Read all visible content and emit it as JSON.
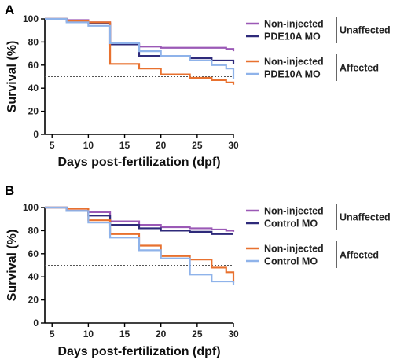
{
  "chart_data": [
    {
      "type": "line",
      "step": true,
      "panel_label": "A",
      "xlabel": "Days post-fertilization (dpf)",
      "ylabel": "Survival (%)",
      "xlim": [
        4,
        30
      ],
      "ylim": [
        0,
        100
      ],
      "xticks": [
        5,
        10,
        15,
        20,
        25,
        30
      ],
      "yticks": [
        0,
        20,
        40,
        60,
        80,
        100
      ],
      "reference_line": {
        "y": 50,
        "style": "dotted"
      },
      "groups": [
        {
          "label": "Unaffected",
          "series_indices": [
            0,
            1
          ]
        },
        {
          "label": "Affected",
          "series_indices": [
            2,
            3
          ]
        }
      ],
      "series": [
        {
          "name": "Non-injected",
          "color": "#9b59b6",
          "x": [
            4,
            7,
            10,
            13,
            17,
            20,
            24,
            27,
            29,
            30
          ],
          "y": [
            100,
            99,
            97,
            78,
            76,
            75,
            75,
            75,
            74,
            72
          ]
        },
        {
          "name": "PDE10A MO",
          "color": "#2e2a7a",
          "x": [
            4,
            7,
            10,
            13,
            17,
            20,
            24,
            27,
            29,
            30
          ],
          "y": [
            100,
            98,
            96,
            78,
            68,
            68,
            66,
            64,
            64,
            61
          ]
        },
        {
          "name": "Non-injected",
          "color": "#e8712f",
          "x": [
            4,
            7,
            10,
            13,
            17,
            20,
            24,
            27,
            29,
            30
          ],
          "y": [
            100,
            98,
            97,
            61,
            57,
            52,
            49,
            47,
            45,
            43
          ]
        },
        {
          "name": "PDE10A MO",
          "color": "#8fb3ea",
          "x": [
            4,
            7,
            10,
            13,
            17,
            20,
            24,
            27,
            29,
            30
          ],
          "y": [
            100,
            97,
            94,
            79,
            72,
            68,
            64,
            60,
            57,
            48
          ]
        }
      ]
    },
    {
      "type": "line",
      "step": true,
      "panel_label": "B",
      "xlabel": "Days post-fertilization (dpf)",
      "ylabel": "Survival (%)",
      "xlim": [
        4,
        30
      ],
      "ylim": [
        0,
        100
      ],
      "xticks": [
        5,
        10,
        15,
        20,
        25,
        30
      ],
      "yticks": [
        0,
        20,
        40,
        60,
        80,
        100
      ],
      "reference_line": {
        "y": 50,
        "style": "dotted"
      },
      "groups": [
        {
          "label": "Unaffected",
          "series_indices": [
            0,
            1
          ]
        },
        {
          "label": "Affected",
          "series_indices": [
            2,
            3
          ]
        }
      ],
      "series": [
        {
          "name": "Non-injected",
          "color": "#9b59b6",
          "x": [
            4,
            7,
            10,
            13,
            17,
            20,
            24,
            27,
            29,
            30
          ],
          "y": [
            100,
            99,
            96,
            88,
            85,
            83,
            82,
            81,
            80,
            79
          ]
        },
        {
          "name": "Control MO",
          "color": "#2e2a7a",
          "x": [
            4,
            7,
            10,
            13,
            17,
            20,
            24,
            27,
            29,
            30
          ],
          "y": [
            100,
            97,
            93,
            85,
            82,
            80,
            79,
            77,
            77,
            77
          ]
        },
        {
          "name": "Non-injected",
          "color": "#e8712f",
          "x": [
            4,
            7,
            10,
            13,
            17,
            20,
            24,
            27,
            29,
            30
          ],
          "y": [
            100,
            99,
            89,
            77,
            67,
            58,
            55,
            48,
            44,
            35
          ]
        },
        {
          "name": "Control MO",
          "color": "#8fb3ea",
          "x": [
            4,
            7,
            10,
            13,
            17,
            20,
            24,
            27,
            29,
            30
          ],
          "y": [
            100,
            97,
            87,
            74,
            63,
            56,
            42,
            36,
            36,
            33
          ]
        }
      ]
    }
  ]
}
